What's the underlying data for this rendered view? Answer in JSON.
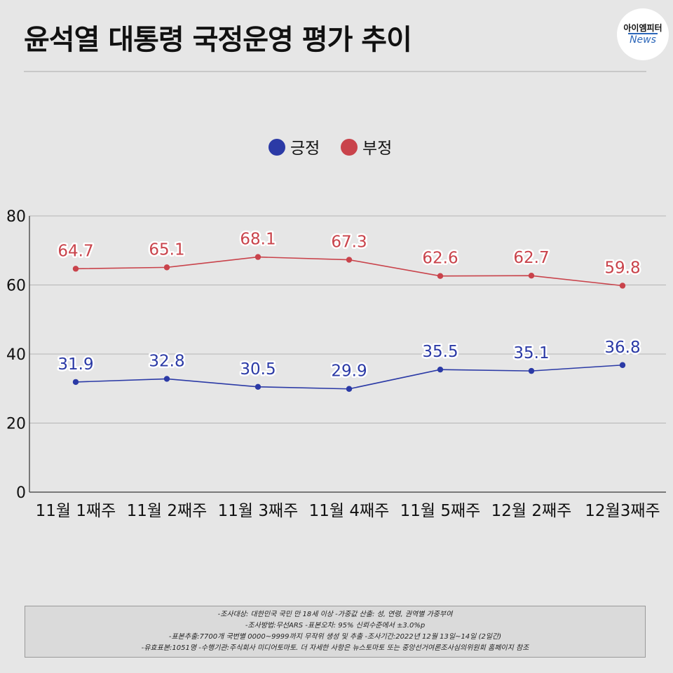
{
  "header": {
    "title": "윤석열 대통령 국정운영 평가 추이",
    "logo_top": "아이엠피터",
    "logo_bottom": "News"
  },
  "colors": {
    "positive": "#2b3aa6",
    "negative": "#c9434b",
    "background": "#e6e6e6",
    "grid": "#b5b5b5"
  },
  "chart_data": {
    "type": "line",
    "categories": [
      "11월 1째주",
      "11월 2째주",
      "11월 3째주",
      "11월 4째주",
      "11월 5째주",
      "12월 2째주",
      "12월3째주"
    ],
    "series": [
      {
        "name": "긍정",
        "values": [
          31.9,
          32.8,
          30.5,
          29.9,
          35.5,
          35.1,
          36.8
        ]
      },
      {
        "name": "부정",
        "values": [
          64.7,
          65.1,
          68.1,
          67.3,
          62.6,
          62.7,
          59.8
        ]
      }
    ],
    "ylim": [
      0,
      80
    ],
    "yticks": [
      0,
      20,
      40,
      60,
      80
    ],
    "grid": true,
    "legend": "top-center",
    "data_labels": true
  },
  "notes": [
    "-조사대상: 대한민국 국민 만 18세 이상  -가중값 산출: 성, 연령, 권역별 가중부여",
    "-조사방법:무선ARS -표본오차: 95% 신뢰수준에서 ±3.0%p",
    "-표본추출:7700개 국번별 0000~9999까지 무작위 생성 및 추출 -조사기간:2022년 12월 13일~14일 (2일간)",
    "-유효표본:1051명 -수행기관:주식회사 미디어토마토. 더 자세한 사항은 뉴스토마토 또는 중앙선거여론조사심의위원회 홈페이지 참조"
  ]
}
